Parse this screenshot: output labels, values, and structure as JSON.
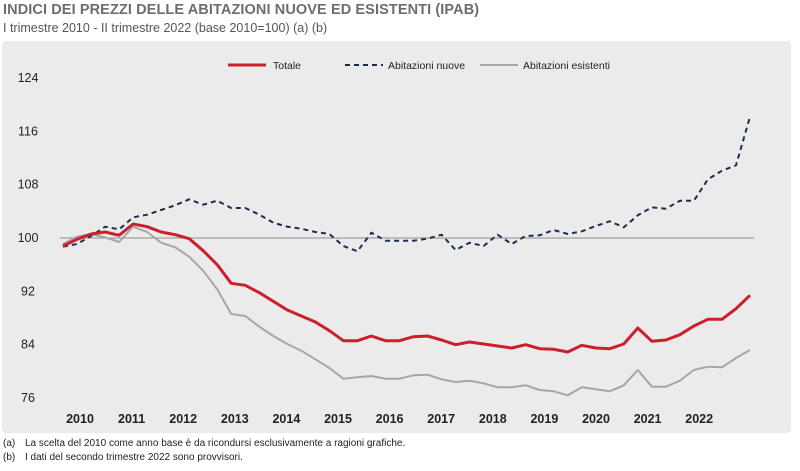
{
  "header": {
    "title": "INDICI DEI PREZZI DELLE ABITAZIONI NUOVE ED ESISTENTI (IPAB)",
    "subtitle": "I trimestre 2010 - II trimestre 2022 (base 2010=100) (a) (b)"
  },
  "notes": [
    {
      "mark": "(a)",
      "text": "La scelta del 2010 come anno base è da ricondursi esclusivamente a ragioni grafiche."
    },
    {
      "mark": "(b)",
      "text": "I dati del secondo trimestre 2022 sono provvisori."
    }
  ],
  "colors": {
    "totale": "#cc1f2d",
    "nuove": "#1a2f4f",
    "esistenti": "#a6a6a6",
    "reference_line": "#8c8c8c",
    "background": "#ebebeb"
  },
  "chart_data": {
    "type": "line",
    "title": "INDICI DEI PREZZI DELLE ABITAZIONI NUOVE ED ESISTENTI (IPAB)",
    "subtitle": "I trimestre 2010 - II trimestre 2022 (base 2010=100) (a) (b)",
    "x_tick_labels": [
      "2010",
      "2011",
      "2012",
      "2013",
      "2014",
      "2015",
      "2016",
      "2017",
      "2018",
      "2019",
      "2020",
      "2021",
      "2022"
    ],
    "y_ticks": [
      76,
      84,
      92,
      100,
      108,
      116,
      124
    ],
    "ylim": [
      76,
      124
    ],
    "reference_line": 100,
    "grid": false,
    "legend_position": "top",
    "series": [
      {
        "name": "Totale",
        "style": "solid",
        "values": [
          98.8,
          99.8,
          100.6,
          100.9,
          100.4,
          102.1,
          101.7,
          100.9,
          100.5,
          99.9,
          98.1,
          96.0,
          93.2,
          92.9,
          91.8,
          90.5,
          89.2,
          88.3,
          87.4,
          86.1,
          84.6,
          84.6,
          85.3,
          84.6,
          84.6,
          85.2,
          85.3,
          84.7,
          84.0,
          84.4,
          84.1,
          83.8,
          83.5,
          84.0,
          83.4,
          83.3,
          82.9,
          83.9,
          83.5,
          83.4,
          84.1,
          86.5,
          84.5,
          84.7,
          85.5,
          86.8,
          87.8,
          87.8,
          89.4,
          91.4
        ]
      },
      {
        "name": "Abitazioni nuove",
        "style": "dashed",
        "values": [
          98.7,
          99.1,
          100.3,
          101.7,
          101.3,
          103.1,
          103.5,
          104.2,
          104.9,
          105.8,
          105.0,
          105.6,
          104.5,
          104.5,
          103.5,
          102.3,
          101.7,
          101.4,
          100.9,
          100.6,
          98.8,
          98.0,
          100.8,
          99.6,
          99.6,
          99.6,
          99.9,
          100.5,
          98.2,
          99.3,
          98.8,
          100.5,
          99.1,
          100.3,
          100.4,
          101.2,
          100.6,
          101.0,
          101.8,
          102.5,
          101.6,
          103.4,
          104.6,
          104.4,
          105.6,
          105.6,
          108.8,
          110.1,
          110.9,
          118.2
        ]
      },
      {
        "name": "Abitazioni esistenti",
        "style": "solid",
        "values": [
          99.1,
          100.2,
          100.6,
          100.1,
          99.4,
          101.7,
          100.9,
          99.3,
          98.6,
          97.2,
          95.1,
          92.3,
          88.6,
          88.3,
          86.7,
          85.3,
          84.1,
          83.1,
          81.8,
          80.5,
          78.9,
          79.1,
          79.3,
          78.9,
          78.9,
          79.4,
          79.5,
          78.8,
          78.4,
          78.6,
          78.2,
          77.6,
          77.6,
          77.9,
          77.2,
          77.0,
          76.4,
          77.6,
          77.3,
          77.0,
          77.9,
          80.2,
          77.7,
          77.7,
          78.6,
          80.2,
          80.7,
          80.6,
          82.0,
          83.2
        ]
      }
    ]
  }
}
